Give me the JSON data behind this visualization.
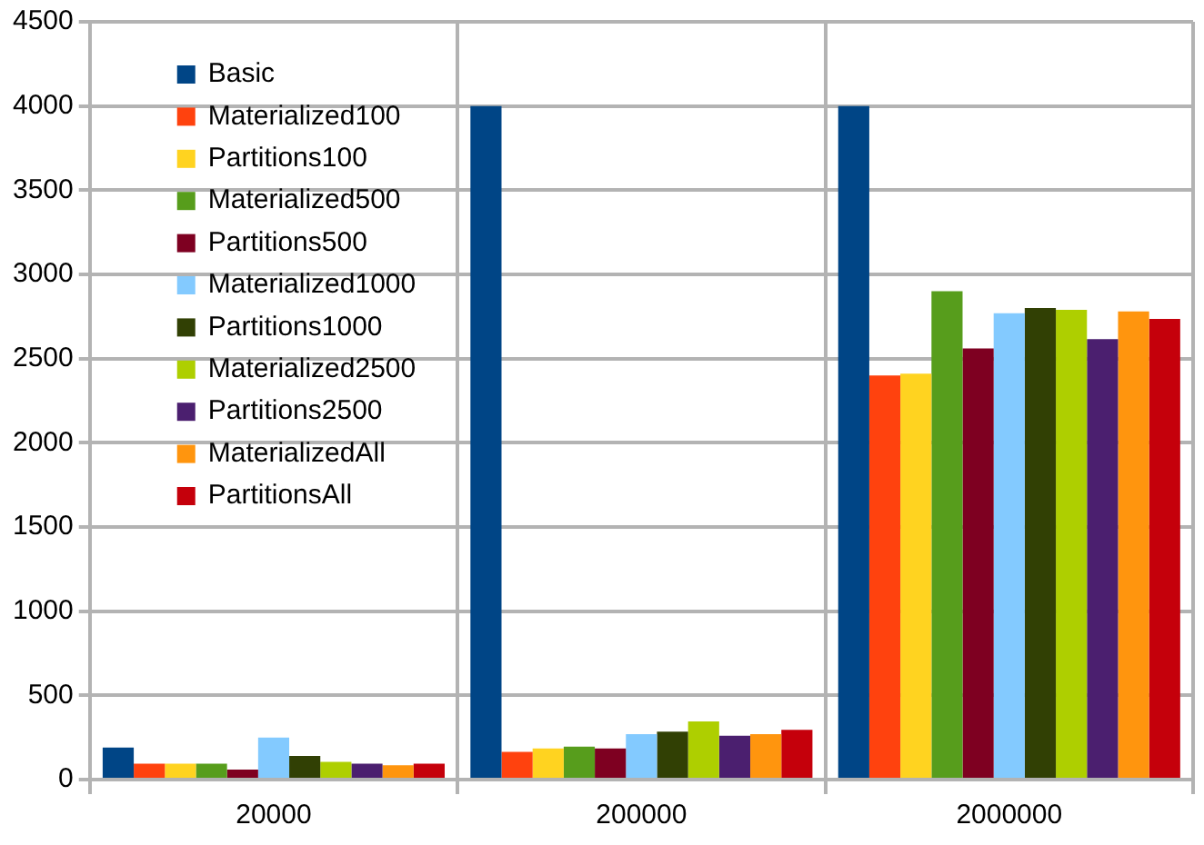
{
  "chart_data": {
    "type": "bar",
    "categories": [
      "20000",
      "200000",
      "2000000"
    ],
    "series": [
      {
        "name": "Basic",
        "color": "#004586",
        "values": [
          190,
          4000,
          4000
        ]
      },
      {
        "name": "Materialized100",
        "color": "#ff420e",
        "values": [
          95,
          165,
          2400
        ]
      },
      {
        "name": "Partitions100",
        "color": "#ffd320",
        "values": [
          95,
          185,
          2410
        ]
      },
      {
        "name": "Materialized500",
        "color": "#579d1c",
        "values": [
          95,
          195,
          2900
        ]
      },
      {
        "name": "Partitions500",
        "color": "#7e0021",
        "values": [
          60,
          185,
          2560
        ]
      },
      {
        "name": "Materialized1000",
        "color": "#83caff",
        "values": [
          250,
          270,
          2770
        ]
      },
      {
        "name": "Partitions1000",
        "color": "#314004",
        "values": [
          140,
          285,
          2800
        ]
      },
      {
        "name": "Materialized2500",
        "color": "#aecf00",
        "values": [
          105,
          345,
          2790
        ]
      },
      {
        "name": "Partitions2500",
        "color": "#4b1f6f",
        "values": [
          95,
          260,
          2615
        ]
      },
      {
        "name": "MaterializedAll",
        "color": "#ff950e",
        "values": [
          85,
          270,
          2780
        ]
      },
      {
        "name": "PartitionsAll",
        "color": "#c5000b",
        "values": [
          95,
          295,
          2735
        ]
      }
    ],
    "ylim": [
      0,
      4500
    ],
    "yticks": [
      0,
      500,
      1000,
      1500,
      2000,
      2500,
      3000,
      3500,
      4000,
      4500
    ],
    "grid": true,
    "legend": "top left"
  }
}
